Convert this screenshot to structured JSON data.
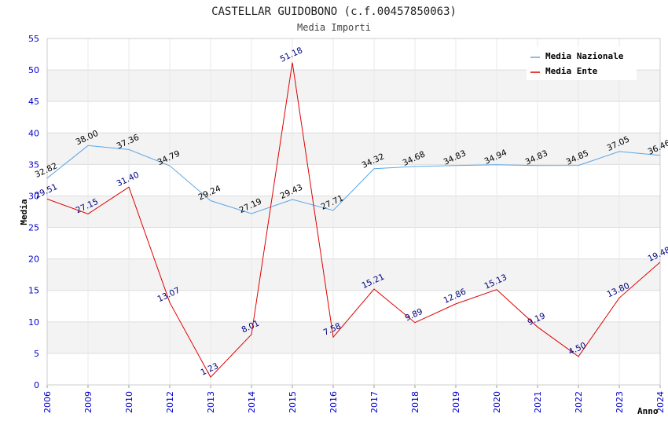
{
  "chart_data": {
    "type": "line",
    "title": "CASTELLAR GUIDOBONO (c.f.00457850063)",
    "subtitle": "Media Importi",
    "xlabel": "Anno",
    "ylabel": "Media",
    "ylim": [
      0,
      55
    ],
    "yticks": [
      0,
      5,
      10,
      15,
      20,
      25,
      30,
      35,
      40,
      45,
      50,
      55
    ],
    "categories": [
      "2006",
      "2009",
      "2010",
      "2012",
      "2013",
      "2014",
      "2015",
      "2016",
      "2017",
      "2018",
      "2019",
      "2020",
      "2021",
      "2022",
      "2023",
      "2024"
    ],
    "grid": "horizontal alternating bands",
    "legend_position": "top-right",
    "series": [
      {
        "name": "Media Nazionale",
        "color": "#5aa6e8",
        "label_color": "#000000",
        "values": [
          32.82,
          38.0,
          37.36,
          34.79,
          29.24,
          27.19,
          29.43,
          27.71,
          34.32,
          34.68,
          34.83,
          34.94,
          34.83,
          34.85,
          37.05,
          36.46
        ],
        "labels": [
          "32.82",
          "38.00",
          "37.36",
          "34.79",
          "29.24",
          "27.19",
          "29.43",
          "27.71",
          "34.32",
          "34.68",
          "34.83",
          "34.94",
          "34.83",
          "34.85",
          "37.05",
          "36.46"
        ]
      },
      {
        "name": "Media Ente",
        "color": "#e00000",
        "label_color": "#000080",
        "values": [
          29.51,
          27.15,
          31.4,
          13.07,
          1.23,
          8.01,
          51.18,
          7.58,
          15.21,
          9.89,
          12.86,
          15.13,
          9.19,
          4.5,
          13.8,
          19.48
        ],
        "labels": [
          "29.51",
          "27.15",
          "31.40",
          "13.07",
          "1.23",
          "8.01",
          "51.18",
          "7.58",
          "15.21",
          "9.89",
          "12.86",
          "15.13",
          "9.19",
          "4.50",
          "13.80",
          "19.48"
        ]
      }
    ]
  }
}
